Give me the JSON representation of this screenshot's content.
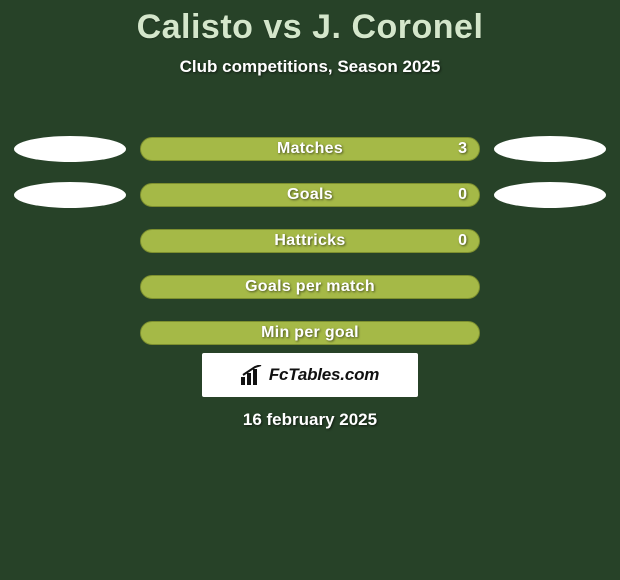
{
  "background_color": "#274228",
  "title": {
    "text": "Calisto vs J. Coronel",
    "color": "#d4e6cb",
    "fontsize": 34
  },
  "subtitle": {
    "text": "Club competitions, Season 2025",
    "fontsize": 17
  },
  "bar": {
    "fill_color": "#a5b947",
    "border_color": "#7d8f2f",
    "label_fontsize": 16,
    "value_fontsize": 16
  },
  "ellipse": {
    "color": "#ffffff"
  },
  "rows": [
    {
      "label": "Matches",
      "value": "3",
      "show_value": true,
      "left_ellipse": true,
      "right_ellipse": true
    },
    {
      "label": "Goals",
      "value": "0",
      "show_value": true,
      "left_ellipse": true,
      "right_ellipse": true
    },
    {
      "label": "Hattricks",
      "value": "0",
      "show_value": true,
      "left_ellipse": false,
      "right_ellipse": false
    },
    {
      "label": "Goals per match",
      "value": "",
      "show_value": false,
      "left_ellipse": false,
      "right_ellipse": false
    },
    {
      "label": "Min per goal",
      "value": "",
      "show_value": false,
      "left_ellipse": false,
      "right_ellipse": false
    }
  ],
  "brand": {
    "text": "FcTables.com",
    "icon_color": "#111111"
  },
  "footer_date": {
    "text": "16 february 2025",
    "fontsize": 17
  }
}
